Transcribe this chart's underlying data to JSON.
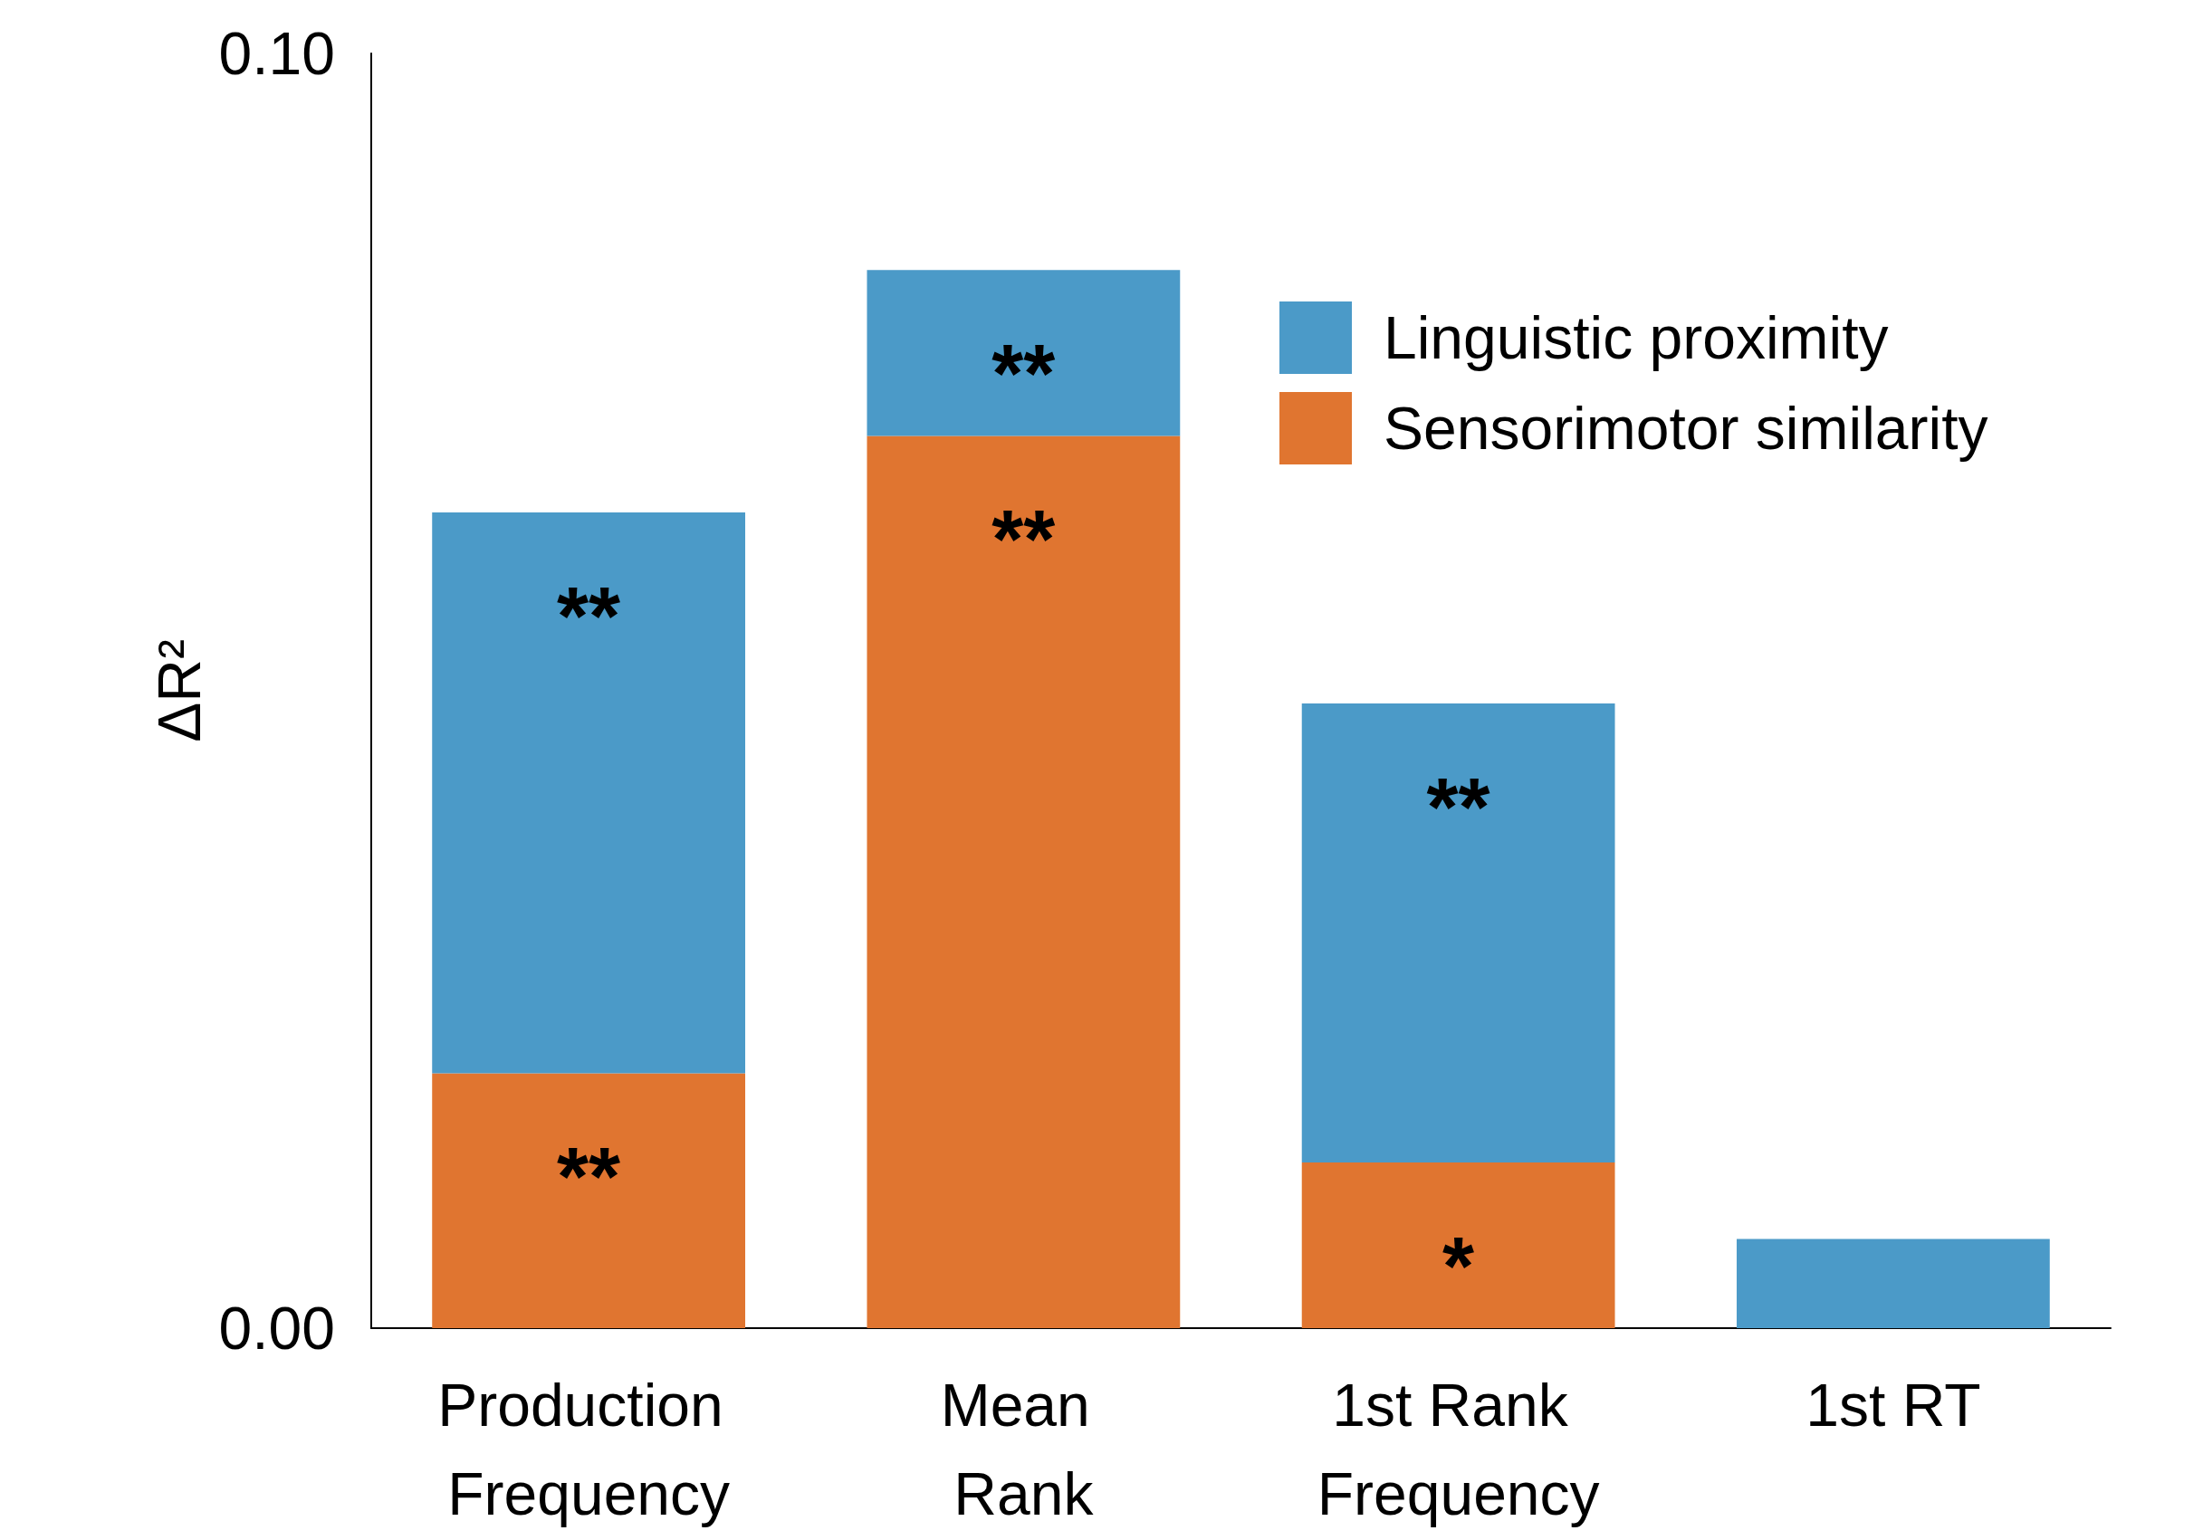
{
  "chart_data": {
    "type": "bar",
    "stacked": true,
    "ylabel": "ΔR²",
    "categories": [
      "Production Frequency",
      "Mean Rank",
      "1st Rank Frequency",
      "1st RT"
    ],
    "series": [
      {
        "name": "Sensorimotor similarity",
        "color": "#e07530",
        "values": [
          0.02,
          0.07,
          0.013,
          0
        ],
        "value_labels": [
          "**",
          "**",
          "*",
          null
        ]
      },
      {
        "name": "Linguistic proximity",
        "color": "#4b9ac8",
        "values": [
          0.044,
          0.013,
          0.036,
          0.007
        ],
        "value_labels": [
          "**",
          "**",
          "**",
          null
        ]
      }
    ],
    "ylim": [
      0,
      0.1
    ],
    "yticks": [
      {
        "value": 0,
        "label": "0.00"
      },
      {
        "value": 0.1,
        "label": "0.10"
      }
    ],
    "grid": false,
    "legend": "top right"
  }
}
